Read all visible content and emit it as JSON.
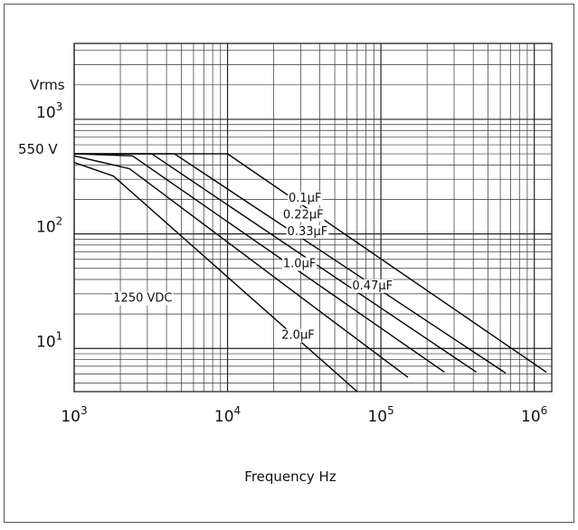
{
  "chart_data": {
    "type": "line",
    "title": "",
    "xlabel": "Frequency Hz",
    "ylabel": "Vrms",
    "x_scale": "log",
    "y_scale": "log",
    "xlim": [
      1000,
      1300000
    ],
    "ylim": [
      4.2,
      4600
    ],
    "grid": true,
    "x_ticks": [
      {
        "value": 1000,
        "base": "10",
        "exp": "3"
      },
      {
        "value": 10000,
        "base": "10",
        "exp": "4"
      },
      {
        "value": 100000,
        "base": "10",
        "exp": "5"
      },
      {
        "value": 1000000,
        "base": "10",
        "exp": "6"
      }
    ],
    "y_ticks": [
      {
        "value": 1000,
        "base": "10",
        "exp": "3"
      },
      {
        "value": 100,
        "base": "10",
        "exp": "2"
      },
      {
        "value": 10,
        "base": "10",
        "exp": "1"
      }
    ],
    "y_extra_label": {
      "value": 550,
      "text": "550 V"
    },
    "annotations": [
      {
        "text": "1250 VDC",
        "x": 1800,
        "y": 28
      }
    ],
    "series": [
      {
        "name": "0.1µF",
        "label_at": [
          25000,
          210
        ],
        "points": [
          [
            1000,
            500
          ],
          [
            10000,
            500
          ],
          [
            1200000,
            6.2
          ]
        ]
      },
      {
        "name": "0.22µF",
        "label_at": [
          23000,
          150
        ],
        "points": [
          [
            1000,
            500
          ],
          [
            4500,
            500
          ],
          [
            650000,
            6.1
          ]
        ]
      },
      {
        "name": "0.33µF",
        "label_at": [
          24500,
          107
        ],
        "points": [
          [
            1000,
            500
          ],
          [
            3200,
            500
          ],
          [
            420000,
            6.2
          ]
        ]
      },
      {
        "name": "0.47µF",
        "label_at": [
          65000,
          36
        ],
        "points": [
          [
            1000,
            500
          ],
          [
            2400,
            480
          ],
          [
            260000,
            6.2
          ]
        ]
      },
      {
        "name": "1.0µF",
        "label_at": [
          23000,
          56
        ],
        "points": [
          [
            1000,
            480
          ],
          [
            2300,
            370
          ],
          [
            150000,
            5.6
          ]
        ]
      },
      {
        "name": "2.0µF",
        "label_at": [
          22500,
          13.3
        ],
        "points": [
          [
            1000,
            420
          ],
          [
            1800,
            320
          ],
          [
            70000,
            4.2
          ]
        ]
      }
    ]
  }
}
